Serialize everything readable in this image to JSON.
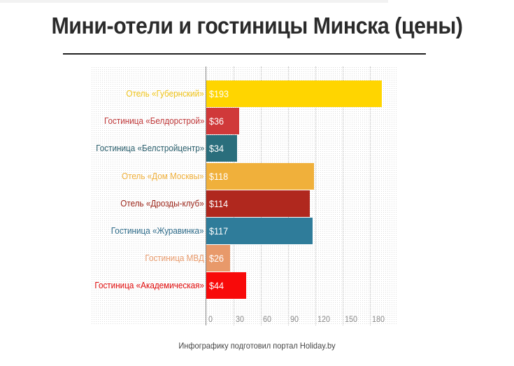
{
  "title": "Мини-отели и гостиницы Минска (цены)",
  "footer": "Инфографику подготовил портал Holiday.by",
  "chart_data": {
    "type": "bar",
    "orientation": "horizontal",
    "title": "Мини-отели и гостиницы Минска (цены)",
    "xlabel": "",
    "ylabel": "",
    "xlim": [
      0,
      210
    ],
    "grid": true,
    "legend": "none",
    "value_prefix": "$",
    "categories": [
      "Отель «Губернский»",
      "Гостиница «Белдорстрой»",
      "Гостиница «Белстройцентр»",
      "Отель «Дом Москвы»",
      "Отель «Дрозды-клуб»",
      "Гостиница «Журавинка»",
      "Гостиница МВД",
      "Гостиница «Академическая»"
    ],
    "values": [
      193,
      36,
      34,
      118,
      114,
      117,
      26,
      44
    ],
    "value_labels": [
      "$193",
      "$36",
      "$34",
      "$118",
      "$114",
      "$117",
      "$26",
      "$44"
    ],
    "colors": [
      "#ffd500",
      "#d0393a",
      "#2a6e7c",
      "#f0b03b",
      "#b0281e",
      "#2f7c9a",
      "#e8996a",
      "#f80a0a"
    ],
    "x_ticks": [
      "0",
      "30",
      "60",
      "90",
      "120",
      "150",
      "180"
    ],
    "x_tick_values": [
      0,
      30,
      60,
      90,
      120,
      150,
      180
    ]
  }
}
